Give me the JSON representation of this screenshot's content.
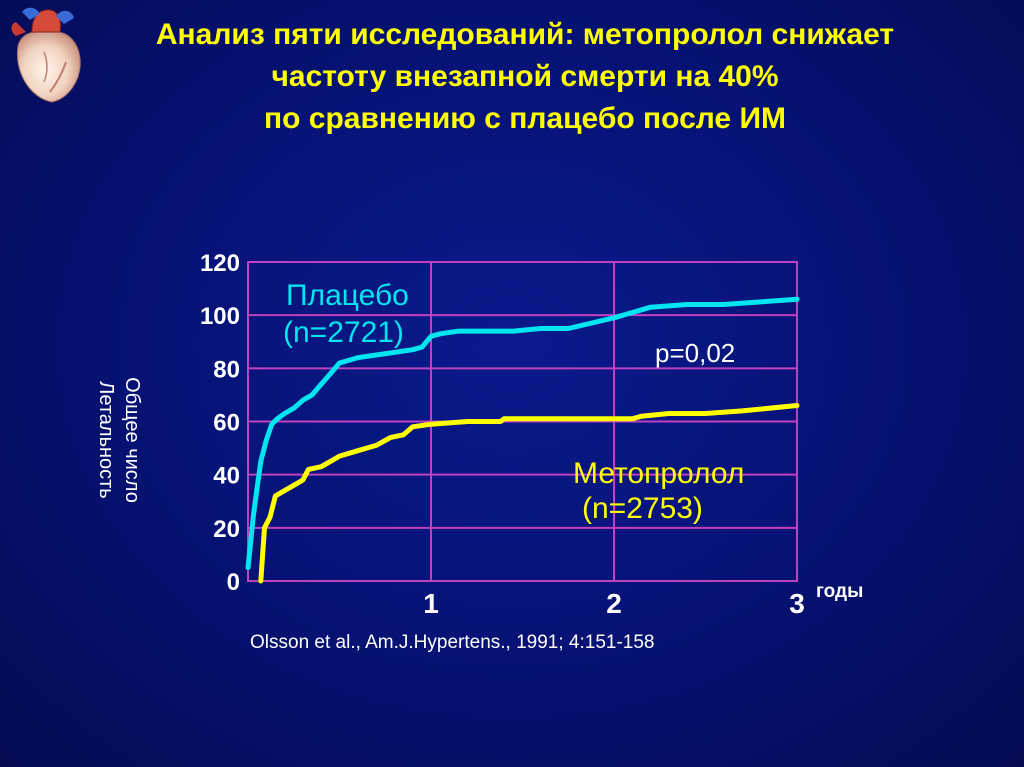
{
  "slide": {
    "title_lines": [
      "Анализ пяти исследований: метопролол снижает",
      "частоту внезапной смерти на 40%",
      "по сравнению с плацебо после ИМ"
    ],
    "citation": "Olsson et al., Am.J.Hypertens., 1991; 4:151-158",
    "logo_icon": "heart-icon"
  },
  "chart_data": {
    "type": "line",
    "ylabel_lines": [
      "Общее число",
      "Летальность"
    ],
    "xlabel": "годы",
    "x_ticks": [
      "1",
      "2",
      "3"
    ],
    "y_ticks": [
      "0",
      "20",
      "40",
      "60",
      "80",
      "100",
      "120"
    ],
    "xlim": [
      0,
      3
    ],
    "ylim": [
      0,
      120
    ],
    "grid": true,
    "annotation": "p=0,02",
    "colors": {
      "placebo": "#00e5f0",
      "metoprolol": "#ffff00",
      "grid": "#c040c0",
      "axis_text": "#ffffff"
    },
    "series": [
      {
        "name": "Плацебо",
        "label_line1": "Плацебо",
        "label_line2": "(n=2721)",
        "color": "#00e5f0",
        "x": [
          0.0,
          0.03,
          0.05,
          0.07,
          0.1,
          0.13,
          0.16,
          0.2,
          0.25,
          0.3,
          0.35,
          0.4,
          0.45,
          0.5,
          0.55,
          0.6,
          0.7,
          0.8,
          0.9,
          0.95,
          1.0,
          1.05,
          1.15,
          1.3,
          1.45,
          1.6,
          1.75,
          2.0,
          2.1,
          2.2,
          2.4,
          2.6,
          2.8,
          3.0
        ],
        "y": [
          5,
          25,
          35,
          45,
          53,
          59,
          61,
          63,
          65,
          68,
          70,
          74,
          78,
          82,
          83,
          84,
          85,
          86,
          87,
          88,
          92,
          93,
          94,
          94,
          94,
          95,
          95,
          99,
          101,
          103,
          104,
          104,
          105,
          106
        ]
      },
      {
        "name": "Метопролол",
        "label_line1": "Метопролол",
        "label_line2": "(n=2753)",
        "color": "#ffff00",
        "x": [
          0.07,
          0.09,
          0.12,
          0.15,
          0.2,
          0.25,
          0.3,
          0.33,
          0.4,
          0.45,
          0.5,
          0.6,
          0.7,
          0.78,
          0.85,
          0.9,
          1.0,
          1.2,
          1.38,
          1.4,
          1.6,
          1.8,
          2.0,
          2.1,
          2.15,
          2.3,
          2.5,
          2.7,
          3.0
        ],
        "y": [
          0,
          20,
          24,
          32,
          34,
          36,
          38,
          42,
          43,
          45,
          47,
          49,
          51,
          54,
          55,
          58,
          59,
          60,
          60,
          61,
          61,
          61,
          61,
          61,
          62,
          63,
          63,
          64,
          66
        ]
      }
    ]
  }
}
